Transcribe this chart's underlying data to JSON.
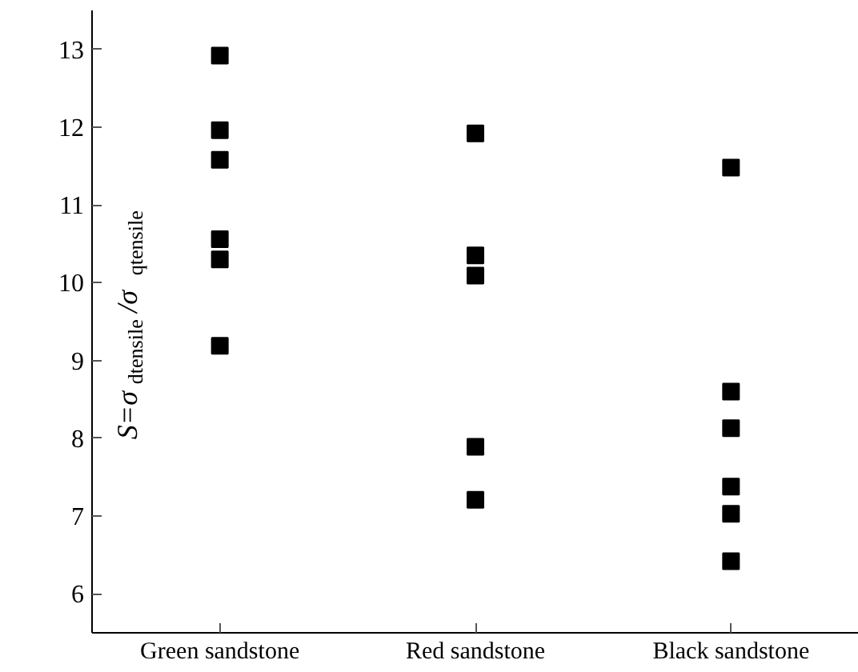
{
  "chart_data": {
    "type": "scatter",
    "ylabel": "S=σ$_{dtensile}$/σ$_{qtensile}$",
    "categories": [
      "Green sandstone",
      "Red sandstone",
      "Black sandstone"
    ],
    "series": [
      {
        "color": "#000000",
        "x": [
          "Green sandstone",
          "Green sandstone",
          "Green sandstone",
          "Green sandstone",
          "Green sandstone",
          "Green sandstone",
          "Red sandstone",
          "Red sandstone",
          "Red sandstone",
          "Red sandstone",
          "Red sandstone",
          "Black sandstone",
          "Black sandstone",
          "Black sandstone",
          "Black sandstone",
          "Black sandstone",
          "Black sandstone"
        ],
        "values": [
          12.92,
          11.96,
          11.58,
          10.56,
          10.3,
          9.19,
          11.92,
          10.35,
          10.09,
          7.89,
          7.21,
          11.48,
          8.6,
          8.13,
          7.38,
          7.03,
          6.42
        ]
      }
    ],
    "ylim": [
      5.5,
      13.5
    ],
    "yticks": [
      6,
      7,
      8,
      9,
      10,
      11,
      12,
      13
    ],
    "marker": "square",
    "grid": false
  }
}
